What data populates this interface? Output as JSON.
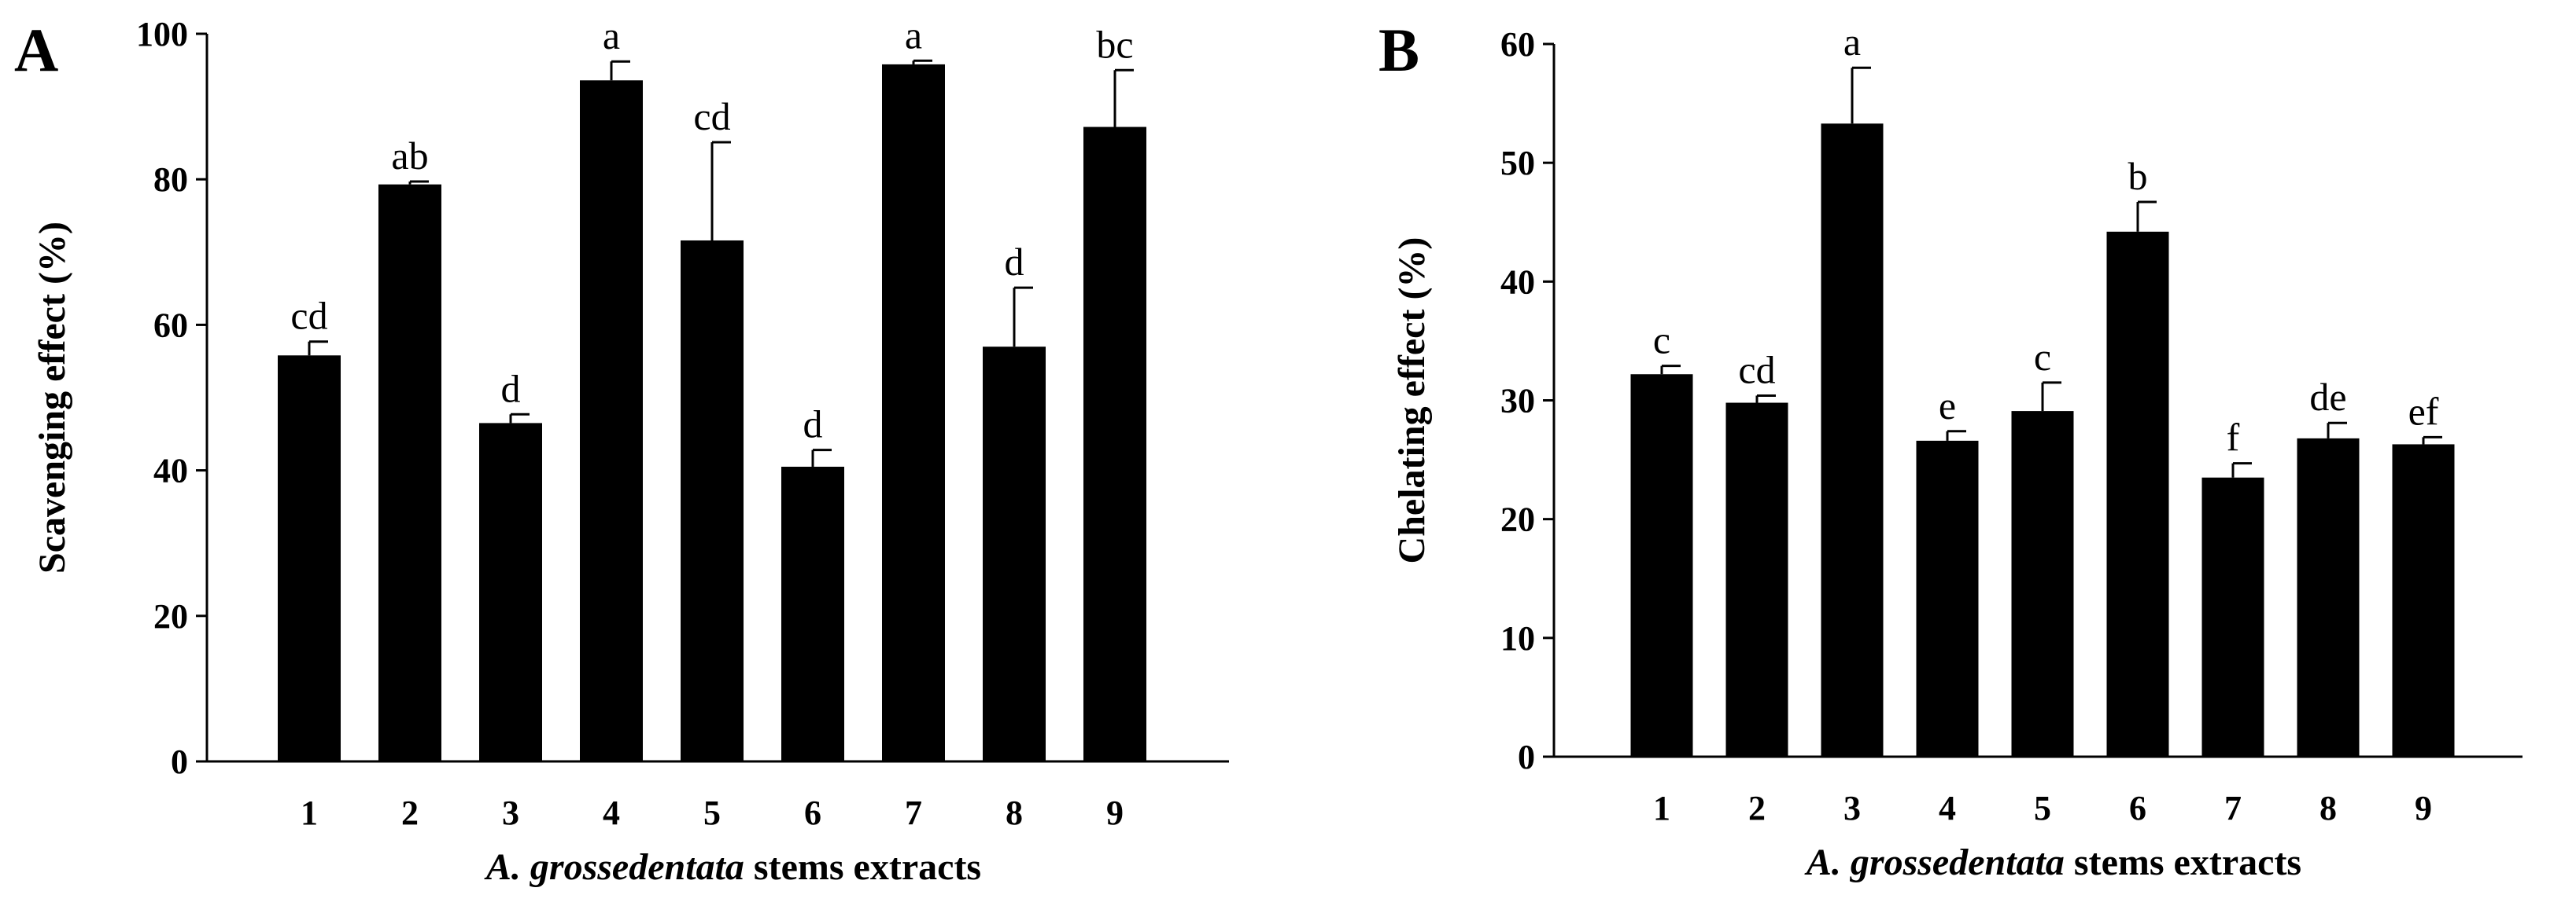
{
  "chart_data": [
    {
      "type": "bar",
      "panel": "A",
      "categories": [
        "1",
        "2",
        "3",
        "4",
        "5",
        "6",
        "7",
        "8",
        "9"
      ],
      "values": [
        55.8,
        79.3,
        46.5,
        93.6,
        71.6,
        40.5,
        95.8,
        57.0,
        87.2
      ],
      "errors": [
        1.9,
        0.4,
        1.2,
        2.6,
        13.5,
        2.3,
        0.5,
        8.1,
        7.8
      ],
      "labels": [
        "cd",
        "ab",
        "d",
        "a",
        "cd",
        "d",
        "a",
        "d",
        "bc"
      ],
      "ylabel": "Scavenging effect (%)",
      "xlabel_italic": "A. grossedentata",
      "xlabel_rest": " stems extracts",
      "ylim": [
        0,
        100
      ],
      "yticks": [
        0,
        20,
        40,
        60,
        80,
        100
      ],
      "grid": false
    },
    {
      "type": "bar",
      "panel": "B",
      "categories": [
        "1",
        "2",
        "3",
        "4",
        "5",
        "6",
        "7",
        "8",
        "9"
      ],
      "values": [
        32.2,
        29.8,
        53.3,
        26.6,
        29.1,
        44.2,
        23.5,
        26.8,
        26.3
      ],
      "errors": [
        0.7,
        0.6,
        4.7,
        0.8,
        2.4,
        2.5,
        1.2,
        1.3,
        0.6
      ],
      "labels": [
        "c",
        "cd",
        "a",
        "e",
        "c",
        "b",
        "f",
        "de",
        "ef"
      ],
      "ylabel": "Chelating effect (%)",
      "xlabel_italic": "A. grossedentata",
      "xlabel_rest": " stems extracts",
      "ylim": [
        0,
        60
      ],
      "yticks": [
        0,
        10,
        20,
        30,
        40,
        50,
        60
      ],
      "grid": false
    }
  ],
  "colors": {
    "bar": "#000000",
    "axis": "#000000",
    "background": "#ffffff"
  }
}
